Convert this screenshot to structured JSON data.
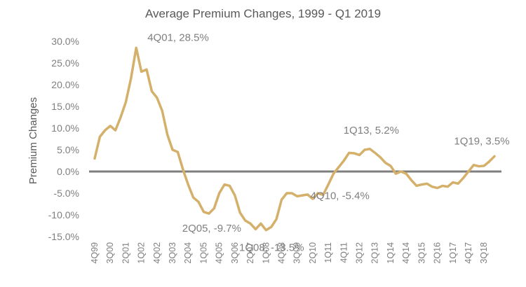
{
  "chart_data": {
    "type": "line",
    "title": "Average Premium Changes, 1999 - Q1 2019",
    "xlabel": "",
    "ylabel": "Premium Changes",
    "ylim": [
      -15,
      30
    ],
    "y_ticks": [
      "30.0%",
      "25.0%",
      "20.0%",
      "15.0%",
      "10.0%",
      "5.0%",
      "0.0%",
      "-5.0%",
      "-10.0%",
      "-15.0%"
    ],
    "y_tick_values": [
      30,
      25,
      20,
      15,
      10,
      5,
      0,
      -5,
      -10,
      -15
    ],
    "x_tick_labels": [
      "4Q99",
      "3Q00",
      "2Q01",
      "1Q02",
      "4Q02",
      "3Q03",
      "2Q04",
      "1Q05",
      "4Q05",
      "3Q06",
      "2Q07",
      "1Q08",
      "4Q08",
      "3Q09",
      "2Q10",
      "1Q11",
      "4Q11",
      "3Q12",
      "2Q13",
      "1Q14",
      "4Q14",
      "3Q15",
      "2Q16",
      "1Q17",
      "4Q17",
      "3Q18"
    ],
    "x": [
      "4Q99",
      "1Q00",
      "2Q00",
      "3Q00",
      "4Q00",
      "1Q01",
      "2Q01",
      "3Q01",
      "4Q01",
      "1Q02",
      "2Q02",
      "3Q02",
      "4Q02",
      "1Q03",
      "2Q03",
      "3Q03",
      "4Q03",
      "1Q04",
      "2Q04",
      "3Q04",
      "4Q04",
      "1Q05",
      "2Q05",
      "3Q05",
      "4Q05",
      "1Q06",
      "2Q06",
      "3Q06",
      "4Q06",
      "1Q07",
      "2Q07",
      "3Q07",
      "4Q07",
      "1Q08",
      "2Q08",
      "3Q08",
      "4Q08",
      "1Q09",
      "2Q09",
      "3Q09",
      "4Q09",
      "1Q10",
      "2Q10",
      "3Q10",
      "4Q10",
      "1Q11",
      "2Q11",
      "3Q11",
      "4Q11",
      "1Q12",
      "2Q12",
      "3Q12",
      "4Q12",
      "1Q13",
      "2Q13",
      "3Q13",
      "4Q13",
      "1Q14",
      "2Q14",
      "3Q14",
      "4Q14",
      "1Q15",
      "2Q15",
      "3Q15",
      "4Q15",
      "1Q16",
      "2Q16",
      "3Q16",
      "4Q16",
      "1Q17",
      "2Q17",
      "3Q17",
      "4Q17",
      "1Q18",
      "2Q18",
      "3Q18",
      "4Q18",
      "1Q19"
    ],
    "series": [
      {
        "values": [
          3.0,
          8.0,
          9.5,
          10.5,
          9.5,
          12.5,
          16.0,
          21.5,
          28.5,
          23.0,
          23.5,
          18.5,
          17.0,
          14.0,
          8.5,
          5.0,
          4.5,
          0.5,
          -3.0,
          -6.0,
          -7.0,
          -9.3,
          -9.7,
          -8.5,
          -5.0,
          -3.0,
          -3.3,
          -5.5,
          -9.5,
          -11.3,
          -12.0,
          -13.3,
          -12.0,
          -13.5,
          -12.8,
          -11.0,
          -6.5,
          -5.0,
          -5.0,
          -5.7,
          -5.5,
          -5.3,
          -6.3,
          -5.0,
          -5.4,
          -3.0,
          -0.5,
          1.0,
          2.5,
          4.3,
          4.2,
          3.8,
          5.0,
          5.2,
          4.3,
          3.3,
          2.0,
          1.3,
          -0.5,
          0.0,
          -0.5,
          -2.0,
          -3.3,
          -3.0,
          -2.8,
          -3.5,
          -3.8,
          -3.3,
          -3.5,
          -2.5,
          -2.8,
          -1.5,
          0.0,
          1.5,
          1.2,
          1.3,
          2.3,
          3.5
        ],
        "color": "#d4b06a"
      }
    ],
    "zero_line_color": "#7f7f7f",
    "annotations": [
      {
        "text": "4Q01, 28.5%",
        "x": "4Q01",
        "y": 28.5
      },
      {
        "text": "2Q05, -9.7%",
        "x": "2Q05",
        "y": -9.7
      },
      {
        "text": "1Q08, -13.5%",
        "x": "1Q08",
        "y": -13.5
      },
      {
        "text": "4Q10, -5.4%",
        "x": "4Q10",
        "y": -5.4
      },
      {
        "text": "1Q13, 5.2%",
        "x": "1Q13",
        "y": 5.2
      },
      {
        "text": "1Q19, 3.5%",
        "x": "1Q19",
        "y": 3.5
      }
    ],
    "grid": false,
    "legend": "none"
  }
}
